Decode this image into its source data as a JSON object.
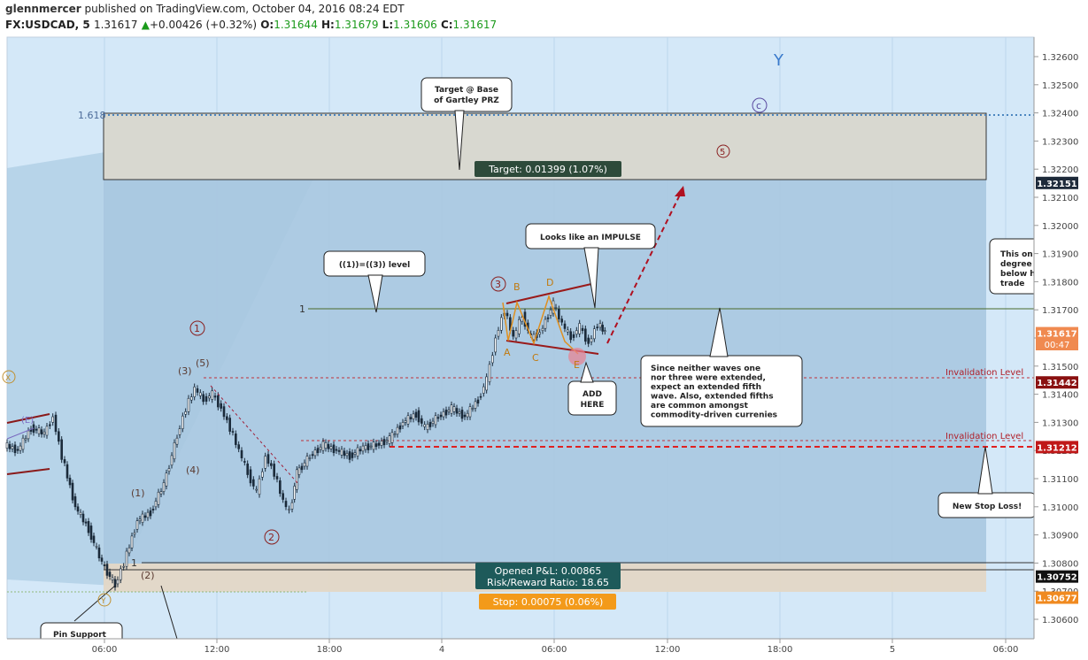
{
  "header": {
    "author": "glennmercer",
    "published": "published on TradingView.com, October 04, 2016 08:24 EDT",
    "symbol": "FX:USDCAD, 5",
    "last": "1.31617",
    "change": "+0.00426 (+0.32%)",
    "o_label": "O:",
    "o": "1.31644",
    "h_label": "H:",
    "h": "1.31679",
    "l_label": "L:",
    "l": "1.31606",
    "c_label": "C:",
    "c": "1.31617"
  },
  "chart_data": {
    "type": "candlestick",
    "symbol": "FX:USDCAD",
    "interval": "5",
    "ylim": [
      1.3055,
      1.327
    ],
    "y_ticks": [
      "1.32600",
      "1.32500",
      "1.32400",
      "1.32300",
      "1.32200",
      "1.32100",
      "1.32000",
      "1.31900",
      "1.31800",
      "1.31700",
      "1.31600",
      "1.31500",
      "1.31400",
      "1.31300",
      "1.31200",
      "1.31100",
      "1.31000",
      "1.30900",
      "1.30800",
      "1.30700",
      "1.30600"
    ],
    "x_ticks": [
      "06:00",
      "12:00",
      "18:00",
      "4",
      "06:00",
      "12:00",
      "18:00",
      "5",
      "06:00"
    ],
    "price_path": [
      [
        0,
        1.3122
      ],
      [
        15,
        1.312
      ],
      [
        30,
        1.3128
      ],
      [
        45,
        1.3126
      ],
      [
        55,
        1.3132
      ],
      [
        65,
        1.3118
      ],
      [
        80,
        1.31
      ],
      [
        95,
        1.3092
      ],
      [
        110,
        1.308
      ],
      [
        125,
        1.3072
      ],
      [
        135,
        1.308
      ],
      [
        150,
        1.3095
      ],
      [
        165,
        1.3098
      ],
      [
        180,
        1.3108
      ],
      [
        195,
        1.3125
      ],
      [
        205,
        1.3135
      ],
      [
        215,
        1.3142
      ],
      [
        225,
        1.3138
      ],
      [
        235,
        1.314
      ],
      [
        245,
        1.3135
      ],
      [
        255,
        1.3128
      ],
      [
        265,
        1.312
      ],
      [
        275,
        1.3112
      ],
      [
        285,
        1.3105
      ],
      [
        295,
        1.3118
      ],
      [
        305,
        1.3112
      ],
      [
        315,
        1.3102
      ],
      [
        322,
        1.3098
      ],
      [
        330,
        1.3112
      ],
      [
        345,
        1.3118
      ],
      [
        360,
        1.3122
      ],
      [
        375,
        1.312
      ],
      [
        390,
        1.3118
      ],
      [
        405,
        1.3121
      ],
      [
        420,
        1.3122
      ],
      [
        435,
        1.3124
      ],
      [
        450,
        1.313
      ],
      [
        465,
        1.3133
      ],
      [
        475,
        1.3128
      ],
      [
        490,
        1.3132
      ],
      [
        505,
        1.3135
      ],
      [
        520,
        1.3132
      ],
      [
        535,
        1.3138
      ],
      [
        545,
        1.3145
      ],
      [
        555,
        1.316
      ],
      [
        565,
        1.317
      ],
      [
        575,
        1.316
      ],
      [
        585,
        1.3168
      ],
      [
        595,
        1.316
      ],
      [
        605,
        1.3162
      ],
      [
        620,
        1.3172
      ],
      [
        630,
        1.3165
      ],
      [
        640,
        1.316
      ],
      [
        650,
        1.3164
      ],
      [
        660,
        1.3158
      ],
      [
        670,
        1.3165
      ],
      [
        678,
        1.3162
      ]
    ],
    "levels": [
      {
        "price": 1.31442,
        "label": "1.31442"
      },
      {
        "price": 1.31212,
        "label": "1.31212"
      },
      {
        "price": 1.32151,
        "label": "1.32151"
      },
      {
        "price": 1.30752,
        "label": "1.30752"
      },
      {
        "price": 1.30677,
        "label": "1.30677"
      },
      {
        "price": 1.31617,
        "label": "1.31617"
      }
    ],
    "countdown": "00:47",
    "fib_1618": "1.618",
    "fib_1": "1",
    "fib_1_low": "1",
    "target_label": "Target: 0.01399 (1.07%)",
    "stop_label": "Stop: 0.00075 (0.06%)",
    "pnl_label": "Opened P&L: 0.00865",
    "rr_label": "Risk/Reward Ratio: 18.65",
    "invalidation_1": "Invalidation Level",
    "invalidation_2": "Invalidation Level",
    "wave_labels": {
      "Y_big": "Y",
      "c": "c",
      "five_c": "5",
      "one_c": "1",
      "two_c": "2",
      "three_c": "3",
      "p1": "(1)",
      "p2": "(2)",
      "p3": "(3)",
      "p4": "(4)",
      "p5": "(5)",
      "A": "A",
      "B": "B",
      "C": "C",
      "D": "D",
      "E": "E",
      "X": "X",
      "E_paren": "(E)",
      "Y_small": "Y"
    },
    "callouts": {
      "target_base_1": "Target @ Base",
      "target_base_2": "of Gartley PRZ",
      "level": "((1))=((3)) level",
      "impulse": "Looks like an IMPULSE",
      "add_1": "ADD",
      "add_2": "HERE",
      "since": [
        "Since neither waves one",
        "nor three were extended,",
        "expect an extended fifth",
        "wave.  Also, extended fifths",
        "are common amongst",
        "commodity-driven currenies"
      ],
      "this_only": [
        "This onl",
        "degree",
        "below h",
        "trade"
      ],
      "stop_loss": "New Stop Loss!",
      "pin_support": "Pin Support"
    }
  }
}
